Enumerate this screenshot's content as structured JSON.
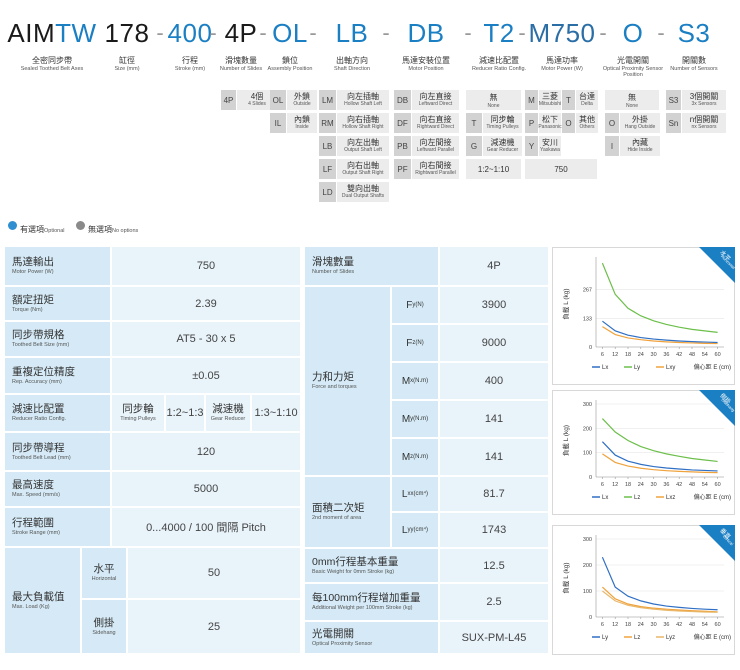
{
  "header": {
    "separator": "-",
    "segments": [
      {
        "code": "AIM",
        "code_suffix": "TW",
        "code_color": "#1a1a1a",
        "suffix_color": "#1b7fc3",
        "label": "全密同步帶",
        "label_en": "Sealed Toothed Belt Axes"
      },
      {
        "code": "178",
        "code_color": "#1a1a1a",
        "label": "缸徑",
        "label_en": "Size (mm)"
      },
      {
        "code": "400",
        "code_color": "#1b7fc3",
        "label": "行程",
        "label_en": "Stroke (mm)"
      },
      {
        "code": "4P",
        "code_color": "#1a1a1a",
        "label": "滑塊數量",
        "label_en": "Number of Slides",
        "options": [
          {
            "code": "4P",
            "label": "4個",
            "label_en": "4 Slides"
          }
        ]
      },
      {
        "code": "OL",
        "code_color": "#1b7fc3",
        "label": "鎖位",
        "label_en": "Assembly Position",
        "options": [
          {
            "code": "OL",
            "label": "外鎖",
            "label_en": "Outside"
          },
          {
            "code": "IL",
            "label": "內鎖",
            "label_en": "Inside"
          }
        ]
      },
      {
        "code": "LB",
        "code_color": "#1b7fc3",
        "label": "出軸方向",
        "label_en": "Shaft Direction",
        "options": [
          {
            "code": "LM",
            "label": "向左插軸",
            "label_en": "Hollow Shaft Left"
          },
          {
            "code": "RM",
            "label": "向右插軸",
            "label_en": "Hollow Shaft Right"
          },
          {
            "code": "LB",
            "label": "向左出軸",
            "label_en": "Output Shaft Left"
          },
          {
            "code": "LF",
            "label": "向右出軸",
            "label_en": "Output Shaft Right"
          },
          {
            "code": "LD",
            "label": "雙向出軸",
            "label_en": "Dual Output Shafts"
          }
        ]
      },
      {
        "code": "DB",
        "code_color": "#1b7fc3",
        "label": "馬達安裝位置",
        "label_en": "Motor Position",
        "options": [
          {
            "code": "DB",
            "label": "向左直接",
            "label_en": "Leftward Direct"
          },
          {
            "code": "DF",
            "label": "向右直接",
            "label_en": "Rightward Direct"
          },
          {
            "code": "PB",
            "label": "向左間接",
            "label_en": "Leftward Parallel"
          },
          {
            "code": "PF",
            "label": "向右間接",
            "label_en": "Rightward Parallel"
          }
        ]
      },
      {
        "code": "T2",
        "code_color": "#1b7fc3",
        "label": "減速比配置",
        "label_en": "Reducer Ratio Config.",
        "options": [
          {
            "label": "無",
            "label_en": "None"
          },
          {
            "code": "T",
            "label": "同步輪",
            "label_en": "Timing Pulleys"
          },
          {
            "code": "G",
            "label": "減速機",
            "label_en": "Gear Reducer"
          },
          {
            "label": "1:2~1:10"
          }
        ]
      },
      {
        "code": "M750",
        "code_color": "#2b6ea6",
        "label": "馬達功率",
        "label_en": "Motor Power (W)",
        "options": [
          {
            "code": "M",
            "label": "三菱",
            "label_en": "Mitsubishi"
          },
          {
            "code": "T",
            "label": "台達",
            "label_en": "Delta"
          },
          {
            "code": "P",
            "label": "松下",
            "label_en": "Panasonic"
          },
          {
            "code": "O",
            "label": "其他",
            "label_en": "Others"
          },
          {
            "code": "Y",
            "label": "安川",
            "label_en": "Yaskawa"
          },
          {
            "label": "750"
          }
        ]
      },
      {
        "code": "O",
        "code_color": "#1b7fc3",
        "label": "光電開關",
        "label_en": "Optical Proximity Sensor Position",
        "options": [
          {
            "label": "無",
            "label_en": "None"
          },
          {
            "code": "O",
            "label": "外掛",
            "label_en": "Hang Outside"
          },
          {
            "code": "I",
            "label": "內藏",
            "label_en": "Hide Inside"
          }
        ]
      },
      {
        "code": "S3",
        "code_color": "#1b7fc3",
        "label": "開關數",
        "label_en": "Number of Sensors",
        "options": [
          {
            "code": "S3",
            "label": "3個開關",
            "label_en": "3x Sensors"
          },
          {
            "code": "Sn",
            "label": "n個開關",
            "label_en": "nx Sensors"
          }
        ]
      }
    ]
  },
  "legend": [
    {
      "label": "有選項",
      "label_en": "Optional"
    },
    {
      "label": "無選項",
      "label_en": "No options"
    }
  ],
  "spec_table": {
    "rows": [
      {
        "label": "馬達輸出",
        "label_en": "Motor Power (W)",
        "value": 750
      },
      {
        "label": "額定扭矩",
        "label_en": "Torque (Nm)",
        "value": 2.39
      },
      {
        "label": "同步帶規格",
        "label_en": "Toothed Belt Size (mm)",
        "value": "AT5 - 30 x 5"
      },
      {
        "label": "重複定位精度",
        "label_en": "Rep. Accuracy (mm)",
        "value": "±0.05"
      },
      {
        "label": "減速比配置",
        "label_en": "Reducer Ratio Config.",
        "options": [
          {
            "label": "同步輪",
            "label_en": "Timing Pulleys",
            "value": "1:2~1:3"
          },
          {
            "label": "減速機",
            "label_en": "Gear Reducer",
            "value": "1:3~1:10"
          }
        ]
      },
      {
        "label": "同步帶導程",
        "label_en": "Toothed Belt Lead (mm)",
        "value": 120
      },
      {
        "label": "最高速度",
        "label_en": "Max. Speed (mm/s)",
        "value": 5000
      },
      {
        "label": "行程範圍",
        "label_en": "Stroke Range (mm)",
        "value": "0...4000 / 100 間隔 Pitch"
      },
      {
        "label": "最大負載值",
        "label_en": "Max. Load (Kg)",
        "sub_rows": [
          {
            "label": "水平",
            "label_en": "Horizontal",
            "value": 50
          },
          {
            "label": "側掛",
            "label_en": "Sidehang",
            "value": 25
          }
        ]
      }
    ]
  },
  "spec_table_2": {
    "rows": [
      {
        "label": "滑塊數量",
        "label_en": "Number of Slides",
        "value": "4P"
      },
      {
        "label": "力和力矩",
        "label_en": "Force and torques",
        "items": [
          {
            "symbol": "F",
            "sub": "y",
            "unit": "(N)",
            "value": 3900
          },
          {
            "symbol": "F",
            "sub": "z",
            "unit": "(N)",
            "value": 9000
          },
          {
            "symbol": "M",
            "sub": "x",
            "unit": "(N.m)",
            "value": 400
          },
          {
            "symbol": "M",
            "sub": "y",
            "unit": "(N.m)",
            "value": 141
          },
          {
            "symbol": "M",
            "sub": "z",
            "unit": "(N.m)",
            "value": 141
          }
        ]
      },
      {
        "label": "面積二次矩",
        "label_en": "2nd moment of area",
        "items": [
          {
            "symbol": "L",
            "sub": "xx",
            "unit": "(cm⁴)",
            "value": 81.7
          },
          {
            "symbol": "L",
            "sub": "yy",
            "unit": "(cm⁴)",
            "value": 1743
          }
        ]
      },
      {
        "label": "0mm行程基本重量",
        "label_en": "Basic Weight for 0mm Stroke (kg)",
        "value": 12.5
      },
      {
        "label": "每100mm行程增加重量",
        "label_en": "Additional Weight per 100mm Stroke (kg)",
        "value": 2.5
      },
      {
        "label": "光電開關",
        "label_en": "Optical Proximity Sensor",
        "value": "SUX-PM-L45"
      }
    ]
  },
  "charts": [
    {
      "type": "line",
      "badge": "水平",
      "badge_en": "Horizontal",
      "y_label": "負載 L (kg)",
      "x_label": "偏心距 E (cm)",
      "x": [
        6,
        12,
        18,
        24,
        30,
        36,
        42,
        48,
        54,
        60
      ],
      "xlim": [
        3,
        63
      ],
      "xticks": [
        6,
        12,
        18,
        24,
        30,
        36,
        42,
        48,
        54,
        60
      ],
      "ylim": [
        0,
        400
      ],
      "yticks": [
        0,
        133,
        267
      ],
      "series": [
        {
          "name": "Lx",
          "color": "#2f6fc4",
          "values": [
            120,
            75,
            55,
            44,
            37,
            32,
            28,
            25,
            23,
            21
          ]
        },
        {
          "name": "Ly",
          "color": "#6cbf4a",
          "values": [
            390,
            245,
            180,
            145,
            122,
            105,
            92,
            82,
            75,
            68
          ]
        },
        {
          "name": "Lxy",
          "color": "#f0a23c",
          "values": [
            95,
            58,
            42,
            34,
            28,
            24,
            21,
            19,
            17,
            16
          ]
        }
      ]
    },
    {
      "type": "line",
      "badge": "側掛",
      "badge_en": "Sidehang",
      "y_label": "負載 L (kg)",
      "x_label": "偏心距 E (cm)",
      "x": [
        6,
        12,
        18,
        24,
        30,
        36,
        42,
        48,
        54,
        60
      ],
      "xlim": [
        3,
        63
      ],
      "xticks": [
        6,
        12,
        18,
        24,
        30,
        36,
        42,
        48,
        54,
        60
      ],
      "ylim": [
        0,
        300
      ],
      "yticks": [
        0,
        100,
        200,
        300
      ],
      "series": [
        {
          "name": "Lx",
          "color": "#2f6fc4",
          "values": [
            145,
            90,
            65,
            52,
            43,
            37,
            33,
            29,
            27,
            25
          ]
        },
        {
          "name": "Lz",
          "color": "#6cbf4a",
          "values": [
            240,
            185,
            150,
            125,
            108,
            95,
            85,
            76,
            70,
            64
          ]
        },
        {
          "name": "Lxz",
          "color": "#f0a23c",
          "values": [
            95,
            60,
            45,
            36,
            30,
            26,
            23,
            21,
            19,
            18
          ]
        }
      ]
    },
    {
      "type": "line",
      "badge": "垂直",
      "badge_en": "Vertical",
      "y_label": "負載 L (kg)",
      "x_label": "偏心距 E (cm)",
      "x": [
        6,
        12,
        18,
        24,
        30,
        36,
        42,
        48,
        54,
        60
      ],
      "xlim": [
        3,
        63
      ],
      "xticks": [
        6,
        12,
        18,
        24,
        30,
        36,
        42,
        48,
        54,
        60
      ],
      "ylim": [
        0,
        300
      ],
      "yticks": [
        0,
        100,
        200,
        300
      ],
      "series": [
        {
          "name": "Ly",
          "color": "#2f6fc4",
          "values": [
            230,
            115,
            80,
            62,
            50,
            42,
            37,
            33,
            30,
            28
          ]
        },
        {
          "name": "Lz",
          "color": "#f0a23c",
          "values": [
            115,
            70,
            50,
            40,
            34,
            30,
            27,
            24,
            22,
            20
          ]
        },
        {
          "name": "Lyz",
          "color": "#e8b86a",
          "values": [
            100,
            62,
            45,
            36,
            30,
            26,
            23,
            21,
            19,
            18
          ]
        }
      ]
    }
  ]
}
